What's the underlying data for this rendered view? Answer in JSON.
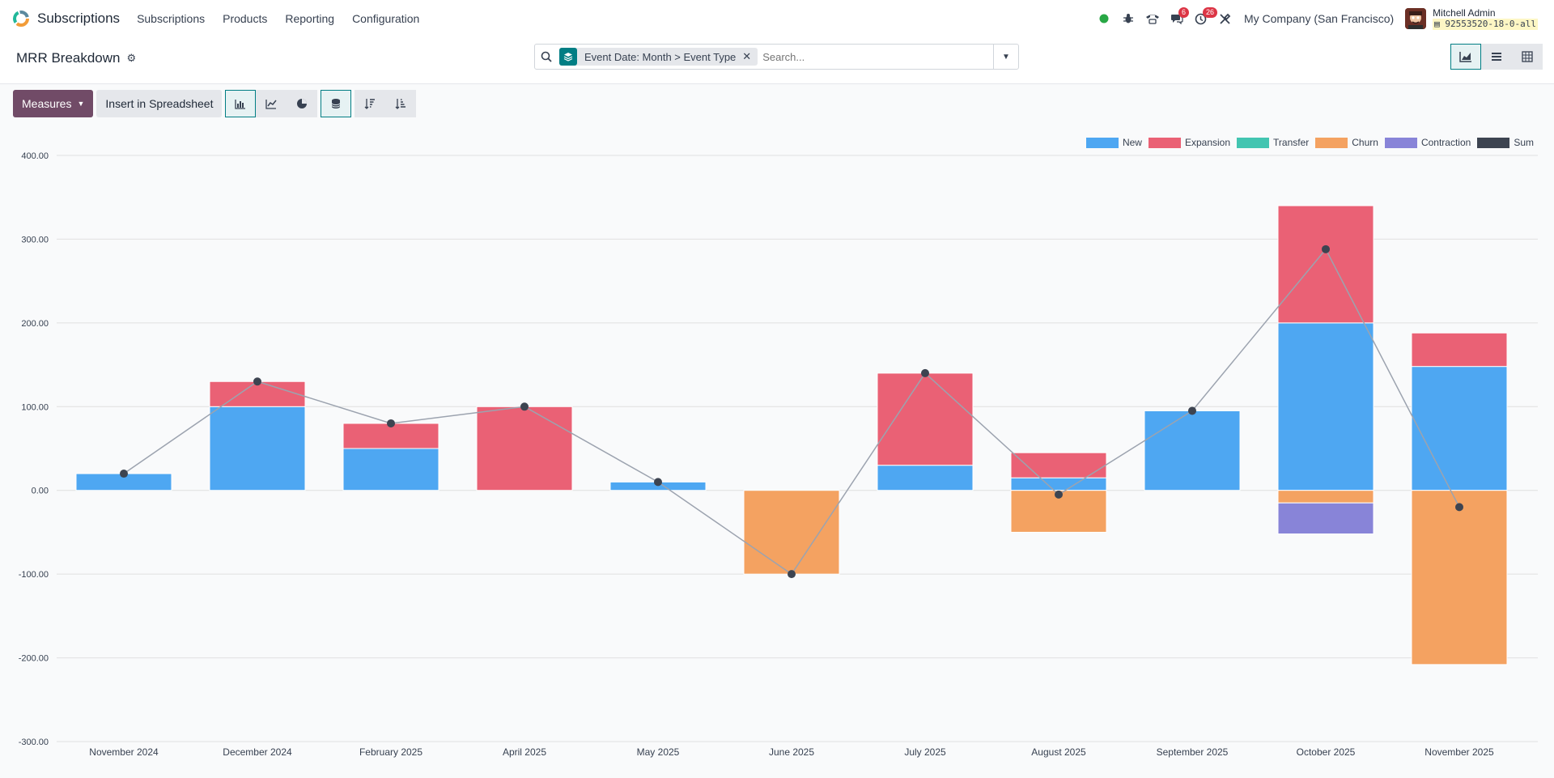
{
  "app": {
    "name": "Subscriptions"
  },
  "nav": [
    "Subscriptions",
    "Products",
    "Reporting",
    "Configuration"
  ],
  "systray": {
    "messages_count": "6",
    "activities_count": "26",
    "company": "My Company (San Francisco)",
    "user_name": "Mitchell Admin",
    "database": "92553520-18-0-all"
  },
  "breadcrumb": {
    "title": "MRR Breakdown"
  },
  "search": {
    "facet_label": "Event Date: Month > Event Type",
    "placeholder": "Search..."
  },
  "toolbar": {
    "measures_label": "Measures",
    "insert_label": "Insert in Spreadsheet"
  },
  "colors": {
    "accent": "#017e84",
    "primary_button": "#714b67",
    "new": "#4ea7f2",
    "expansion": "#ea6175",
    "transfer": "#43c5b1",
    "churn": "#f4a261",
    "contraction": "#8884d8",
    "sum": "#3d4451"
  },
  "chart_data": {
    "type": "bar",
    "stacked": true,
    "categories": [
      "November 2024",
      "December 2024",
      "February 2025",
      "April 2025",
      "May 2025",
      "June 2025",
      "July 2025",
      "August 2025",
      "September 2025",
      "October 2025",
      "November 2025"
    ],
    "series": [
      {
        "name": "New",
        "color": "#4ea7f2",
        "values": [
          20,
          100,
          50,
          0,
          10,
          0,
          30,
          15,
          95,
          200,
          148
        ]
      },
      {
        "name": "Expansion",
        "color": "#ea6175",
        "values": [
          0,
          30,
          30,
          100,
          0,
          0,
          110,
          30,
          0,
          140,
          40
        ]
      },
      {
        "name": "Transfer",
        "color": "#43c5b1",
        "values": [
          0,
          0,
          0,
          0,
          0,
          0,
          0,
          0,
          0,
          0,
          0
        ]
      },
      {
        "name": "Churn",
        "color": "#f4a261",
        "values": [
          0,
          0,
          0,
          0,
          0,
          -100,
          0,
          -50,
          0,
          -15,
          -208
        ]
      },
      {
        "name": "Contraction",
        "color": "#8884d8",
        "values": [
          0,
          0,
          0,
          0,
          0,
          0,
          0,
          0,
          0,
          -37,
          0
        ]
      }
    ],
    "sum": {
      "name": "Sum",
      "color": "#3d4451",
      "values": [
        20,
        130,
        80,
        100,
        10,
        -100,
        140,
        -5,
        95,
        288,
        -20
      ]
    },
    "ylim": [
      -300,
      400
    ],
    "yticks": [
      "-300.00",
      "-200.00",
      "-100.00",
      "0.00",
      "100.00",
      "200.00",
      "300.00",
      "400.00"
    ],
    "grid": true,
    "legend_position": "top-right"
  }
}
